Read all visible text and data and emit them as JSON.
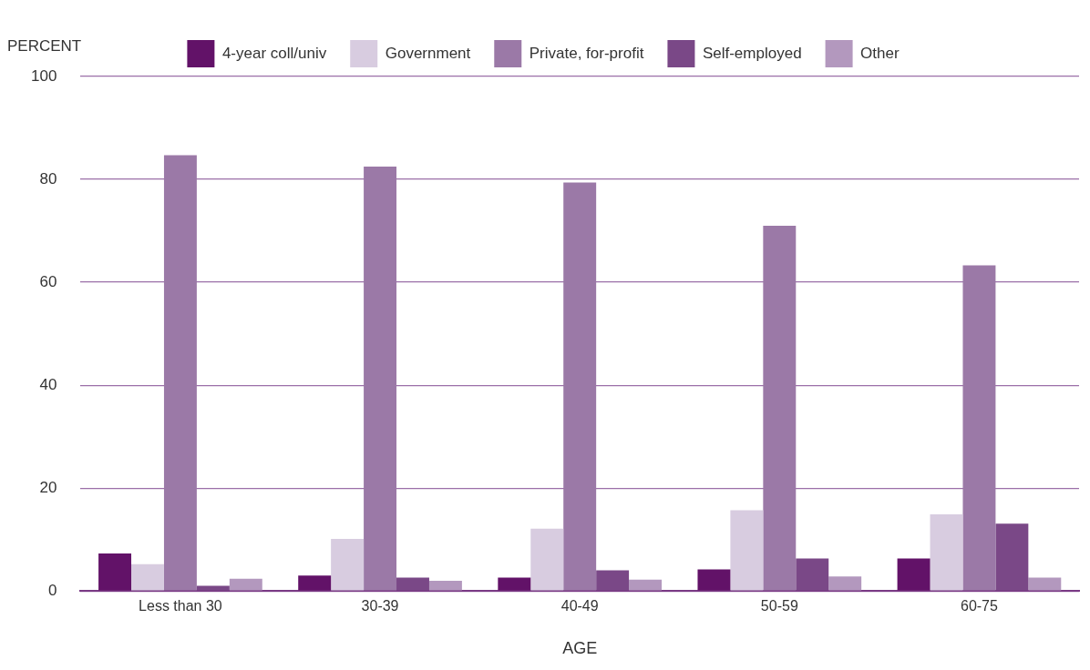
{
  "chart_data": {
    "type": "bar",
    "xlabel": "AGE",
    "ylabel": "PERCENT",
    "categories": [
      "Less than 30",
      "30-39",
      "40-49",
      "50-59",
      "60-75"
    ],
    "series": [
      {
        "name": "4-year coll/univ",
        "color": "#621268",
        "values": [
          7.3,
          3.0,
          2.6,
          4.2,
          6.3
        ]
      },
      {
        "name": "Government",
        "color": "#d8cce0",
        "values": [
          5.2,
          10.1,
          12.1,
          15.7,
          14.9
        ]
      },
      {
        "name": "Private, for-profit",
        "color": "#9b79a7",
        "values": [
          84.7,
          82.5,
          79.4,
          71.0,
          63.3
        ]
      },
      {
        "name": "Self-employed",
        "color": "#7a4887",
        "values": [
          1.0,
          2.6,
          4.0,
          6.3,
          13.1
        ]
      },
      {
        "name": "Other",
        "color": "#b398be",
        "values": [
          2.4,
          2.0,
          2.2,
          2.8,
          2.6
        ]
      }
    ],
    "ylim": [
      0,
      100
    ],
    "yticks": [
      0,
      20,
      40,
      60,
      80,
      100
    ],
    "grid": "y",
    "legend": "top"
  }
}
